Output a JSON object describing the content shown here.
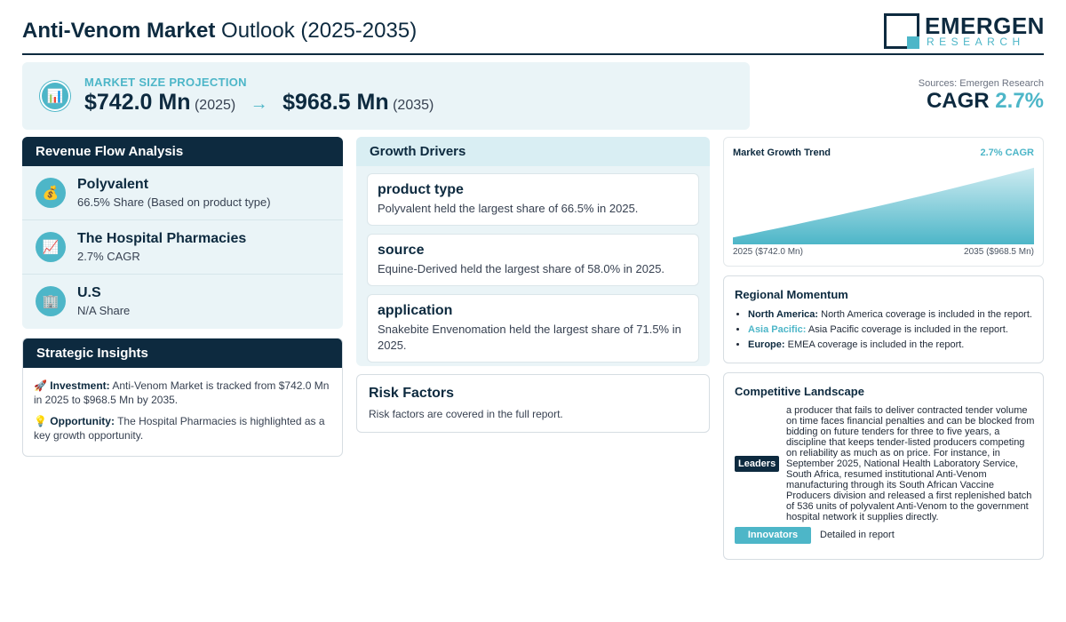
{
  "header": {
    "title_bold": "Anti-Venom Market",
    "title_rest": " Outlook (2025-2035)",
    "logo_name": "EMERGEN",
    "logo_sub": "RESEARCH"
  },
  "projection": {
    "label": "MARKET SIZE PROJECTION",
    "icon": "bar-chart-icon",
    "start_value": "$742.0 Mn",
    "start_year": "(2025)",
    "arrow": "→",
    "end_value": "$968.5 Mn",
    "end_year": "(2035)"
  },
  "summary": {
    "sources": "Sources: Emergen Research",
    "cagr_label": "CAGR",
    "cagr_value": "2.7%"
  },
  "revenue_flow": {
    "title": "Revenue Flow Analysis",
    "items": [
      {
        "icon": "money-bag-icon",
        "glyph": "💰",
        "title": "Polyvalent",
        "sub": "66.5% Share (Based on product type)"
      },
      {
        "icon": "trend-up-icon",
        "glyph": "📈",
        "title": "The Hospital Pharmacies",
        "sub": "2.7% CAGR"
      },
      {
        "icon": "building-icon",
        "glyph": "🏢",
        "title": "U.S",
        "sub": "N/A Share"
      }
    ]
  },
  "strategic": {
    "title": "Strategic Insights",
    "investment_icon": "🚀",
    "investment_label": "Investment:",
    "investment_text": " Anti-Venom Market is tracked from $742.0 Mn in 2025 to $968.5 Mn by 2035.",
    "opportunity_icon": "💡",
    "opportunity_label": "Opportunity:",
    "opportunity_text": " The Hospital Pharmacies is highlighted as a key growth opportunity."
  },
  "drivers": {
    "title": "Growth Drivers",
    "items": [
      {
        "title": "product type",
        "text": "Polyvalent held the largest share of 66.5% in 2025."
      },
      {
        "title": "source",
        "text": "Equine-Derived held the largest share of 58.0% in 2025."
      },
      {
        "title": "application",
        "text": "Snakebite Envenomation held the largest share of 71.5% in 2025."
      }
    ]
  },
  "risk": {
    "title": "Risk Factors",
    "text": "Risk factors are covered in the full report."
  },
  "trend": {
    "title": "Market Growth Trend",
    "cagr": "2.7% CAGR",
    "start_label": "2025 ($742.0 Mn)",
    "end_label": "2035 ($968.5 Mn)",
    "colors": {
      "top": "#cdebf1",
      "bottom": "#4db6c8"
    }
  },
  "chart_data": {
    "type": "area",
    "x": [
      2025,
      2035
    ],
    "series": [
      {
        "values": [
          742.0,
          968.5
        ]
      }
    ]
  },
  "regional": {
    "title": "Regional Momentum",
    "items": [
      {
        "name": "North America:",
        "text": " North America coverage is included in the report.",
        "teal": false
      },
      {
        "name": "Asia Pacific:",
        "text": " Asia Pacific coverage is included in the report.",
        "teal": true
      },
      {
        "name": "Europe:",
        "text": " EMEA coverage is included in the report.",
        "teal": false
      }
    ]
  },
  "competitive": {
    "title": "Competitive Landscape",
    "leaders_label": "Leaders",
    "leaders_text": "a producer that fails to deliver contracted tender volume on time faces financial penalties and can be blocked from bidding on future tenders for three to five years, a discipline that keeps tender-listed producers competing on reliability as much as on price. For instance, in September 2025, National Health Laboratory Service, South Africa, resumed institutional Anti-Venom manufacturing through its South African Vaccine Producers division and released a first replenished batch of 536 units of polyvalent Anti-Venom to the government hospital network it supplies directly.",
    "innovators_label": "Innovators",
    "innovators_text": "Detailed in report"
  },
  "colors": {
    "navy": "#0d2a3f",
    "teal": "#4db6c8",
    "panel_bg": "#eaf4f7"
  }
}
